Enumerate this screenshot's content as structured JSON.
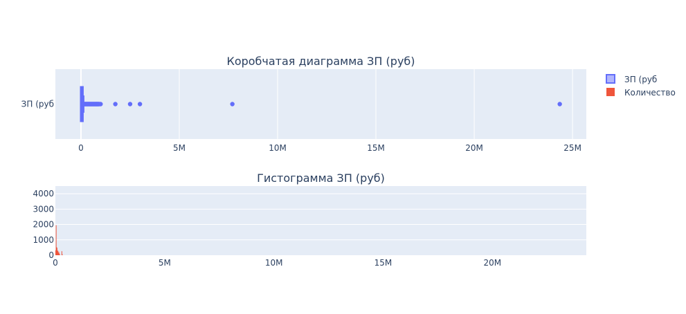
{
  "chart_data": [
    {
      "type": "box",
      "title": "Коробчатая диаграмма ЗП (руб)",
      "orientation": "horizontal",
      "category_label": "ЗП (руб",
      "x_ticks": [
        {
          "value": 0,
          "label": "0"
        },
        {
          "value": 5000000,
          "label": "5M"
        },
        {
          "value": 10000000,
          "label": "10M"
        },
        {
          "value": 15000000,
          "label": "15M"
        },
        {
          "value": 20000000,
          "label": "20M"
        },
        {
          "value": 25000000,
          "label": "25M"
        }
      ],
      "xlim": [
        -1300000,
        25700000
      ],
      "grid": true,
      "box": {
        "min": 0,
        "q1": 20000,
        "median": 40000,
        "q3": 70000,
        "max": 140000,
        "notched": false
      },
      "outliers": [
        150000,
        170000,
        190000,
        210000,
        230000,
        250000,
        270000,
        290000,
        310000,
        330000,
        350000,
        370000,
        390000,
        410000,
        430000,
        450000,
        470000,
        490000,
        510000,
        530000,
        550000,
        570000,
        590000,
        610000,
        630000,
        650000,
        670000,
        690000,
        710000,
        730000,
        750000,
        770000,
        790000,
        810000,
        830000,
        850000,
        870000,
        890000,
        910000,
        950000,
        1000000,
        1750000,
        2500000,
        3000000,
        7700000,
        24350000
      ],
      "color": "#636efa"
    },
    {
      "type": "bar",
      "title": "Гистограмма ЗП (руб)",
      "x_ticks": [
        {
          "value": 0,
          "label": "0"
        },
        {
          "value": 5000000,
          "label": "5M"
        },
        {
          "value": 10000000,
          "label": "10M"
        },
        {
          "value": 15000000,
          "label": "15M"
        },
        {
          "value": 20000000,
          "label": "20M"
        }
      ],
      "y_ticks": [
        {
          "value": 0,
          "label": "0"
        },
        {
          "value": 1000,
          "label": "1000"
        },
        {
          "value": 2000,
          "label": "2000"
        },
        {
          "value": 3000,
          "label": "3000"
        },
        {
          "value": 4000,
          "label": "4000"
        }
      ],
      "xlim": [
        0,
        24300000
      ],
      "ylim": [
        0,
        4500
      ],
      "grid": true,
      "bins": [
        {
          "x0": 0,
          "x1": 20000,
          "count": 320
        },
        {
          "x0": 20000,
          "x1": 40000,
          "count": 1950
        },
        {
          "x0": 40000,
          "x1": 60000,
          "count": 520
        },
        {
          "x0": 60000,
          "x1": 80000,
          "count": 480
        },
        {
          "x0": 80000,
          "x1": 100000,
          "count": 260
        },
        {
          "x0": 100000,
          "x1": 120000,
          "count": 300
        },
        {
          "x0": 120000,
          "x1": 140000,
          "count": 140
        },
        {
          "x0": 140000,
          "x1": 160000,
          "count": 220
        },
        {
          "x0": 160000,
          "x1": 180000,
          "count": 120
        },
        {
          "x0": 180000,
          "x1": 200000,
          "count": 60
        },
        {
          "x0": 280000,
          "x1": 300000,
          "count": 260
        },
        {
          "x0": 300000,
          "x1": 320000,
          "count": 60
        }
      ],
      "color": "#ef553b"
    }
  ],
  "legend": {
    "placement": "top-right",
    "items": [
      {
        "label": "ЗП (руб",
        "color": "#636efa",
        "shape": "box"
      },
      {
        "label": "Количество",
        "color": "#ef553b",
        "shape": "bar"
      }
    ]
  }
}
